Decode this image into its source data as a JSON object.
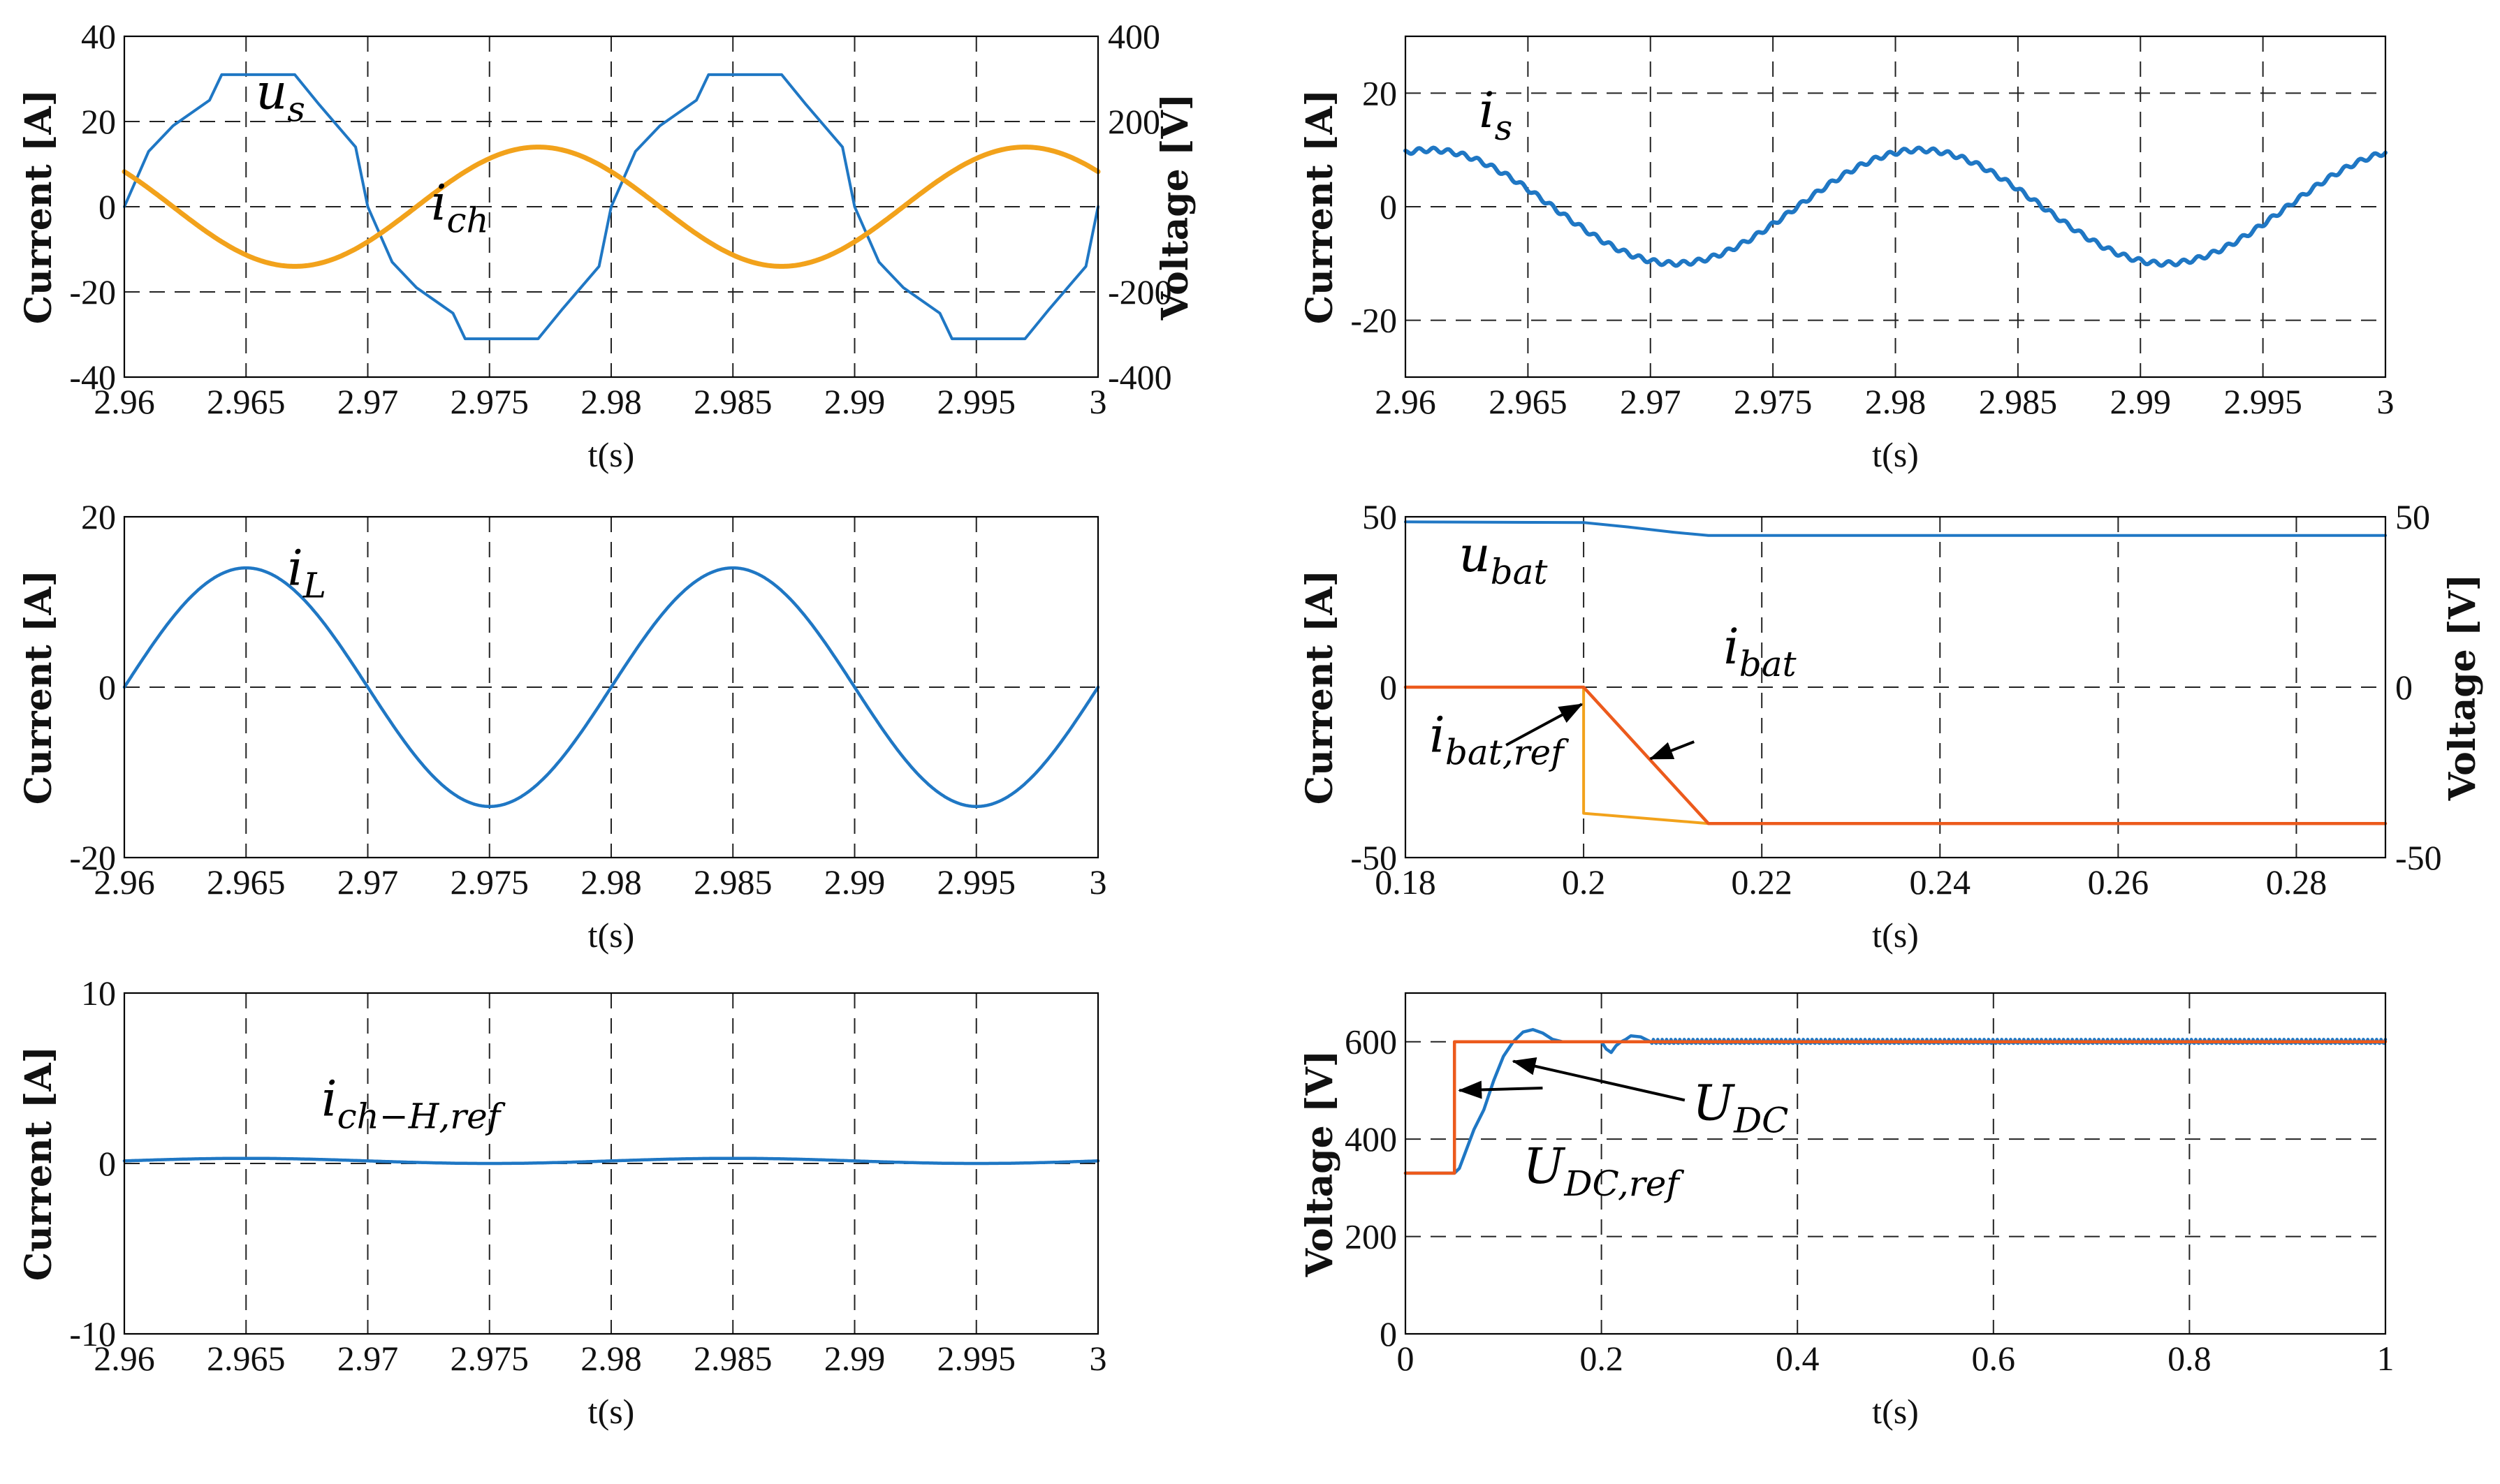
{
  "colors": {
    "blue": "#1f77c4",
    "orange": "#f2a21b",
    "red": "#ec5a1c",
    "grid": "#222222",
    "axis": "#000000"
  },
  "chart_data": [
    {
      "id": "us-ich",
      "type": "line",
      "xlabel": "t(s)",
      "ylabel": "Current [A]",
      "y2label": "Voltage [V]",
      "xlim": [
        2.96,
        3.0
      ],
      "ylim": [
        -40,
        40
      ],
      "y2lim": [
        -400,
        400
      ],
      "xticks": [
        "2.96",
        "2.965",
        "2.97",
        "2.975",
        "2.98",
        "2.985",
        "2.99",
        "2.995",
        "3"
      ],
      "yticks": [
        "40",
        "20",
        "0",
        "-20",
        "-40"
      ],
      "y2ticks": [
        "400",
        "200",
        "",
        "-200",
        "-400"
      ],
      "grid": true,
      "series": [
        {
          "name": "u",
          "sub": "s",
          "axis": "right",
          "color": "#1f77c4",
          "width": 4,
          "points": [
            [
              2.96,
              0
            ],
            [
              2.961,
              130
            ],
            [
              2.962,
              190
            ],
            [
              2.9635,
              250
            ],
            [
              2.964,
              310
            ],
            [
              2.967,
              310
            ],
            [
              2.968,
              240
            ],
            [
              2.9695,
              140
            ],
            [
              2.97,
              0
            ],
            [
              2.971,
              -130
            ],
            [
              2.972,
              -190
            ],
            [
              2.9735,
              -250
            ],
            [
              2.974,
              -310
            ],
            [
              2.977,
              -310
            ],
            [
              2.978,
              -240
            ],
            [
              2.9795,
              -140
            ],
            [
              2.98,
              0
            ],
            [
              2.981,
              130
            ],
            [
              2.982,
              190
            ],
            [
              2.9835,
              250
            ],
            [
              2.984,
              310
            ],
            [
              2.987,
              310
            ],
            [
              2.988,
              240
            ],
            [
              2.9895,
              140
            ],
            [
              2.99,
              0
            ],
            [
              2.991,
              -130
            ],
            [
              2.992,
              -190
            ],
            [
              2.9935,
              -250
            ],
            [
              2.994,
              -310
            ],
            [
              2.997,
              -310
            ],
            [
              2.998,
              -240
            ],
            [
              2.9995,
              -140
            ],
            [
              3.0,
              0
            ]
          ]
        },
        {
          "name": "i",
          "sub": "ch",
          "axis": "left",
          "color": "#f2a21b",
          "width": 7,
          "sine": {
            "amp": 14,
            "period": 0.02,
            "phase_zero_t": 2.962,
            "direction": -1
          }
        }
      ],
      "annotations": [
        {
          "main": "u",
          "sub": "s",
          "x": 2.9654,
          "y": 23
        },
        {
          "main": "i",
          "sub": "ch",
          "x": 2.9726,
          "y": -3
        }
      ]
    },
    {
      "id": "is",
      "type": "line",
      "xlabel": "t(s)",
      "ylabel": "Current [A]",
      "xlim": [
        2.96,
        3.0
      ],
      "ylim": [
        -30,
        30
      ],
      "xticks": [
        "2.96",
        "2.965",
        "2.97",
        "2.975",
        "2.98",
        "2.985",
        "2.99",
        "2.995",
        "3"
      ],
      "yticks": [
        "20",
        "0",
        "-20"
      ],
      "yticks_values": [
        20,
        0,
        -20
      ],
      "grid": true,
      "series": [
        {
          "name": "i",
          "sub": "s",
          "axis": "left",
          "color": "#1f77c4",
          "width": 6,
          "sine": {
            "amp": 10,
            "period": 0.02,
            "phase_zero_t": 2.966,
            "direction": -1,
            "ripple": 0.4
          }
        }
      ],
      "annotations": [
        {
          "main": "i",
          "sub": "s",
          "x": 2.963,
          "y": 14
        }
      ]
    },
    {
      "id": "iL",
      "type": "line",
      "xlabel": "t(s)",
      "ylabel": "Current [A]",
      "xlim": [
        2.96,
        3.0
      ],
      "ylim": [
        -20,
        20
      ],
      "xticks": [
        "2.96",
        "2.965",
        "2.97",
        "2.975",
        "2.98",
        "2.985",
        "2.99",
        "2.995",
        "3"
      ],
      "yticks": [
        "20",
        "0",
        "-20"
      ],
      "grid": true,
      "series": [
        {
          "name": "i",
          "sub": "L",
          "axis": "left",
          "color": "#1f77c4",
          "width": 4.5,
          "sine": {
            "amp": 14,
            "period": 0.02,
            "phase_zero_t": 2.96,
            "direction": 1
          }
        }
      ],
      "annotations": [
        {
          "main": "i",
          "sub": "L",
          "x": 2.9667,
          "y": 12
        }
      ]
    },
    {
      "id": "ibat",
      "type": "line",
      "xlabel": "t(s)",
      "ylabel": "Current [A]",
      "y2label": "Voltage [V]",
      "xlim": [
        0.18,
        0.29
      ],
      "ylim": [
        -50,
        50
      ],
      "y2lim": [
        -50,
        50
      ],
      "xticks": [
        "0.18",
        "0.2",
        "0.22",
        "0.24",
        "0.26",
        "0.28"
      ],
      "xticks_values": [
        0.18,
        0.2,
        0.22,
        0.24,
        0.26,
        0.28
      ],
      "yticks": [
        "50",
        "0",
        "-50"
      ],
      "y2ticks": [
        "50",
        "0",
        "-50"
      ],
      "grid": true,
      "series": [
        {
          "name": "u",
          "sub": "bat",
          "axis": "right",
          "color": "#1f77c4",
          "width": 4,
          "points": [
            [
              0.18,
              48.5
            ],
            [
              0.2,
              48.3
            ],
            [
              0.205,
              47.0
            ],
            [
              0.21,
              45.5
            ],
            [
              0.214,
              44.5
            ],
            [
              0.29,
              44.5
            ]
          ]
        },
        {
          "name": "i",
          "sub": "bat,ref",
          "axis": "left",
          "color": "#f2a21b",
          "width": 4,
          "points": [
            [
              0.18,
              0
            ],
            [
              0.2,
              0
            ],
            [
              0.2,
              -37
            ],
            [
              0.214,
              -40
            ],
            [
              0.29,
              -40
            ]
          ]
        },
        {
          "name": "i",
          "sub": "bat",
          "axis": "left",
          "color": "#ec5a1c",
          "width": 4.5,
          "points": [
            [
              0.18,
              0
            ],
            [
              0.2,
              0
            ],
            [
              0.214,
              -40
            ],
            [
              0.29,
              -40
            ]
          ]
        }
      ],
      "annotations": [
        {
          "main": "u",
          "sub": "bat",
          "x": 0.186,
          "y": 34
        },
        {
          "main": "i",
          "sub": "bat",
          "x": 0.2157,
          "y": 7
        },
        {
          "main": "i",
          "sub": "bat,ref",
          "x": 0.1827,
          "y": -19
        }
      ],
      "arrows": [
        {
          "from": [
            0.1913,
            -17
          ],
          "to": [
            0.1998,
            -5
          ]
        },
        {
          "from": [
            0.2124,
            -16
          ],
          "to": [
            0.2075,
            -21
          ]
        }
      ]
    },
    {
      "id": "ichHref",
      "type": "line",
      "xlabel": "t(s)",
      "ylabel": "Current [A]",
      "xlim": [
        2.96,
        3.0
      ],
      "ylim": [
        -10,
        10
      ],
      "xticks": [
        "2.96",
        "2.965",
        "2.97",
        "2.975",
        "2.98",
        "2.985",
        "2.99",
        "2.995",
        "3"
      ],
      "yticks": [
        "10",
        "0",
        "-10"
      ],
      "grid": true,
      "series": [
        {
          "name": "i",
          "sub": "ch−H,ref",
          "axis": "left",
          "color": "#1f77c4",
          "width": 4.5,
          "sine": {
            "amp": 0.15,
            "period": 0.02,
            "phase_zero_t": 2.96,
            "direction": 1,
            "offset": 0.15
          }
        }
      ],
      "annotations": [
        {
          "main": "i",
          "sub": "ch−H,ref",
          "x": 2.9681,
          "y": 2.8
        }
      ]
    },
    {
      "id": "udc",
      "type": "line",
      "xlabel": "t(s)",
      "ylabel": "Voltage [V]",
      "xlim": [
        0,
        1
      ],
      "ylim": [
        0,
        700
      ],
      "xticks": [
        "0",
        "0.2",
        "0.4",
        "0.6",
        "0.8",
        "1"
      ],
      "xticks_values": [
        0,
        0.2,
        0.4,
        0.6,
        0.8,
        1
      ],
      "yticks": [
        "600",
        "400",
        "200",
        "0"
      ],
      "yticks_values": [
        600,
        400,
        200,
        0
      ],
      "grid": true,
      "series": [
        {
          "name": "U",
          "sub": "DC",
          "axis": "left",
          "color": "#1f77c4",
          "width": 4.5,
          "points": [
            [
              0,
              330
            ],
            [
              0.05,
              330
            ],
            [
              0.055,
              340
            ],
            [
              0.07,
              420
            ],
            [
              0.08,
              460
            ],
            [
              0.09,
              520
            ],
            [
              0.1,
              570
            ],
            [
              0.11,
              600
            ],
            [
              0.12,
              620
            ],
            [
              0.13,
              625
            ],
            [
              0.14,
              618
            ],
            [
              0.15,
              605
            ],
            [
              0.16,
              600
            ],
            [
              0.2,
              600
            ],
            [
              0.205,
              585
            ],
            [
              0.21,
              578
            ],
            [
              0.215,
              592
            ],
            [
              0.22,
              600
            ],
            [
              0.225,
              605
            ],
            [
              0.23,
              612
            ],
            [
              0.24,
              610
            ],
            [
              0.25,
              600
            ]
          ],
          "tail": {
            "from": 0.25,
            "to": 1.0,
            "value": 600,
            "ripple": 5
          }
        },
        {
          "name": "U",
          "sub": "DC,ref",
          "axis": "left",
          "color": "#ec5a1c",
          "width": 4.5,
          "points": [
            [
              0,
              330
            ],
            [
              0.05,
              330
            ],
            [
              0.05,
              600
            ],
            [
              1.0,
              600
            ]
          ]
        }
      ],
      "annotations": [
        {
          "main": "U",
          "sub": "DC",
          "x": 0.293,
          "y": 440
        },
        {
          "main": "U",
          "sub": "DC,ref",
          "x": 0.12,
          "y": 310
        }
      ],
      "arrows": [
        {
          "from": [
            0.14,
            505
          ],
          "to": [
            0.055,
            500
          ]
        },
        {
          "from": [
            0.285,
            480
          ],
          "to": [
            0.11,
            560
          ]
        }
      ]
    }
  ]
}
